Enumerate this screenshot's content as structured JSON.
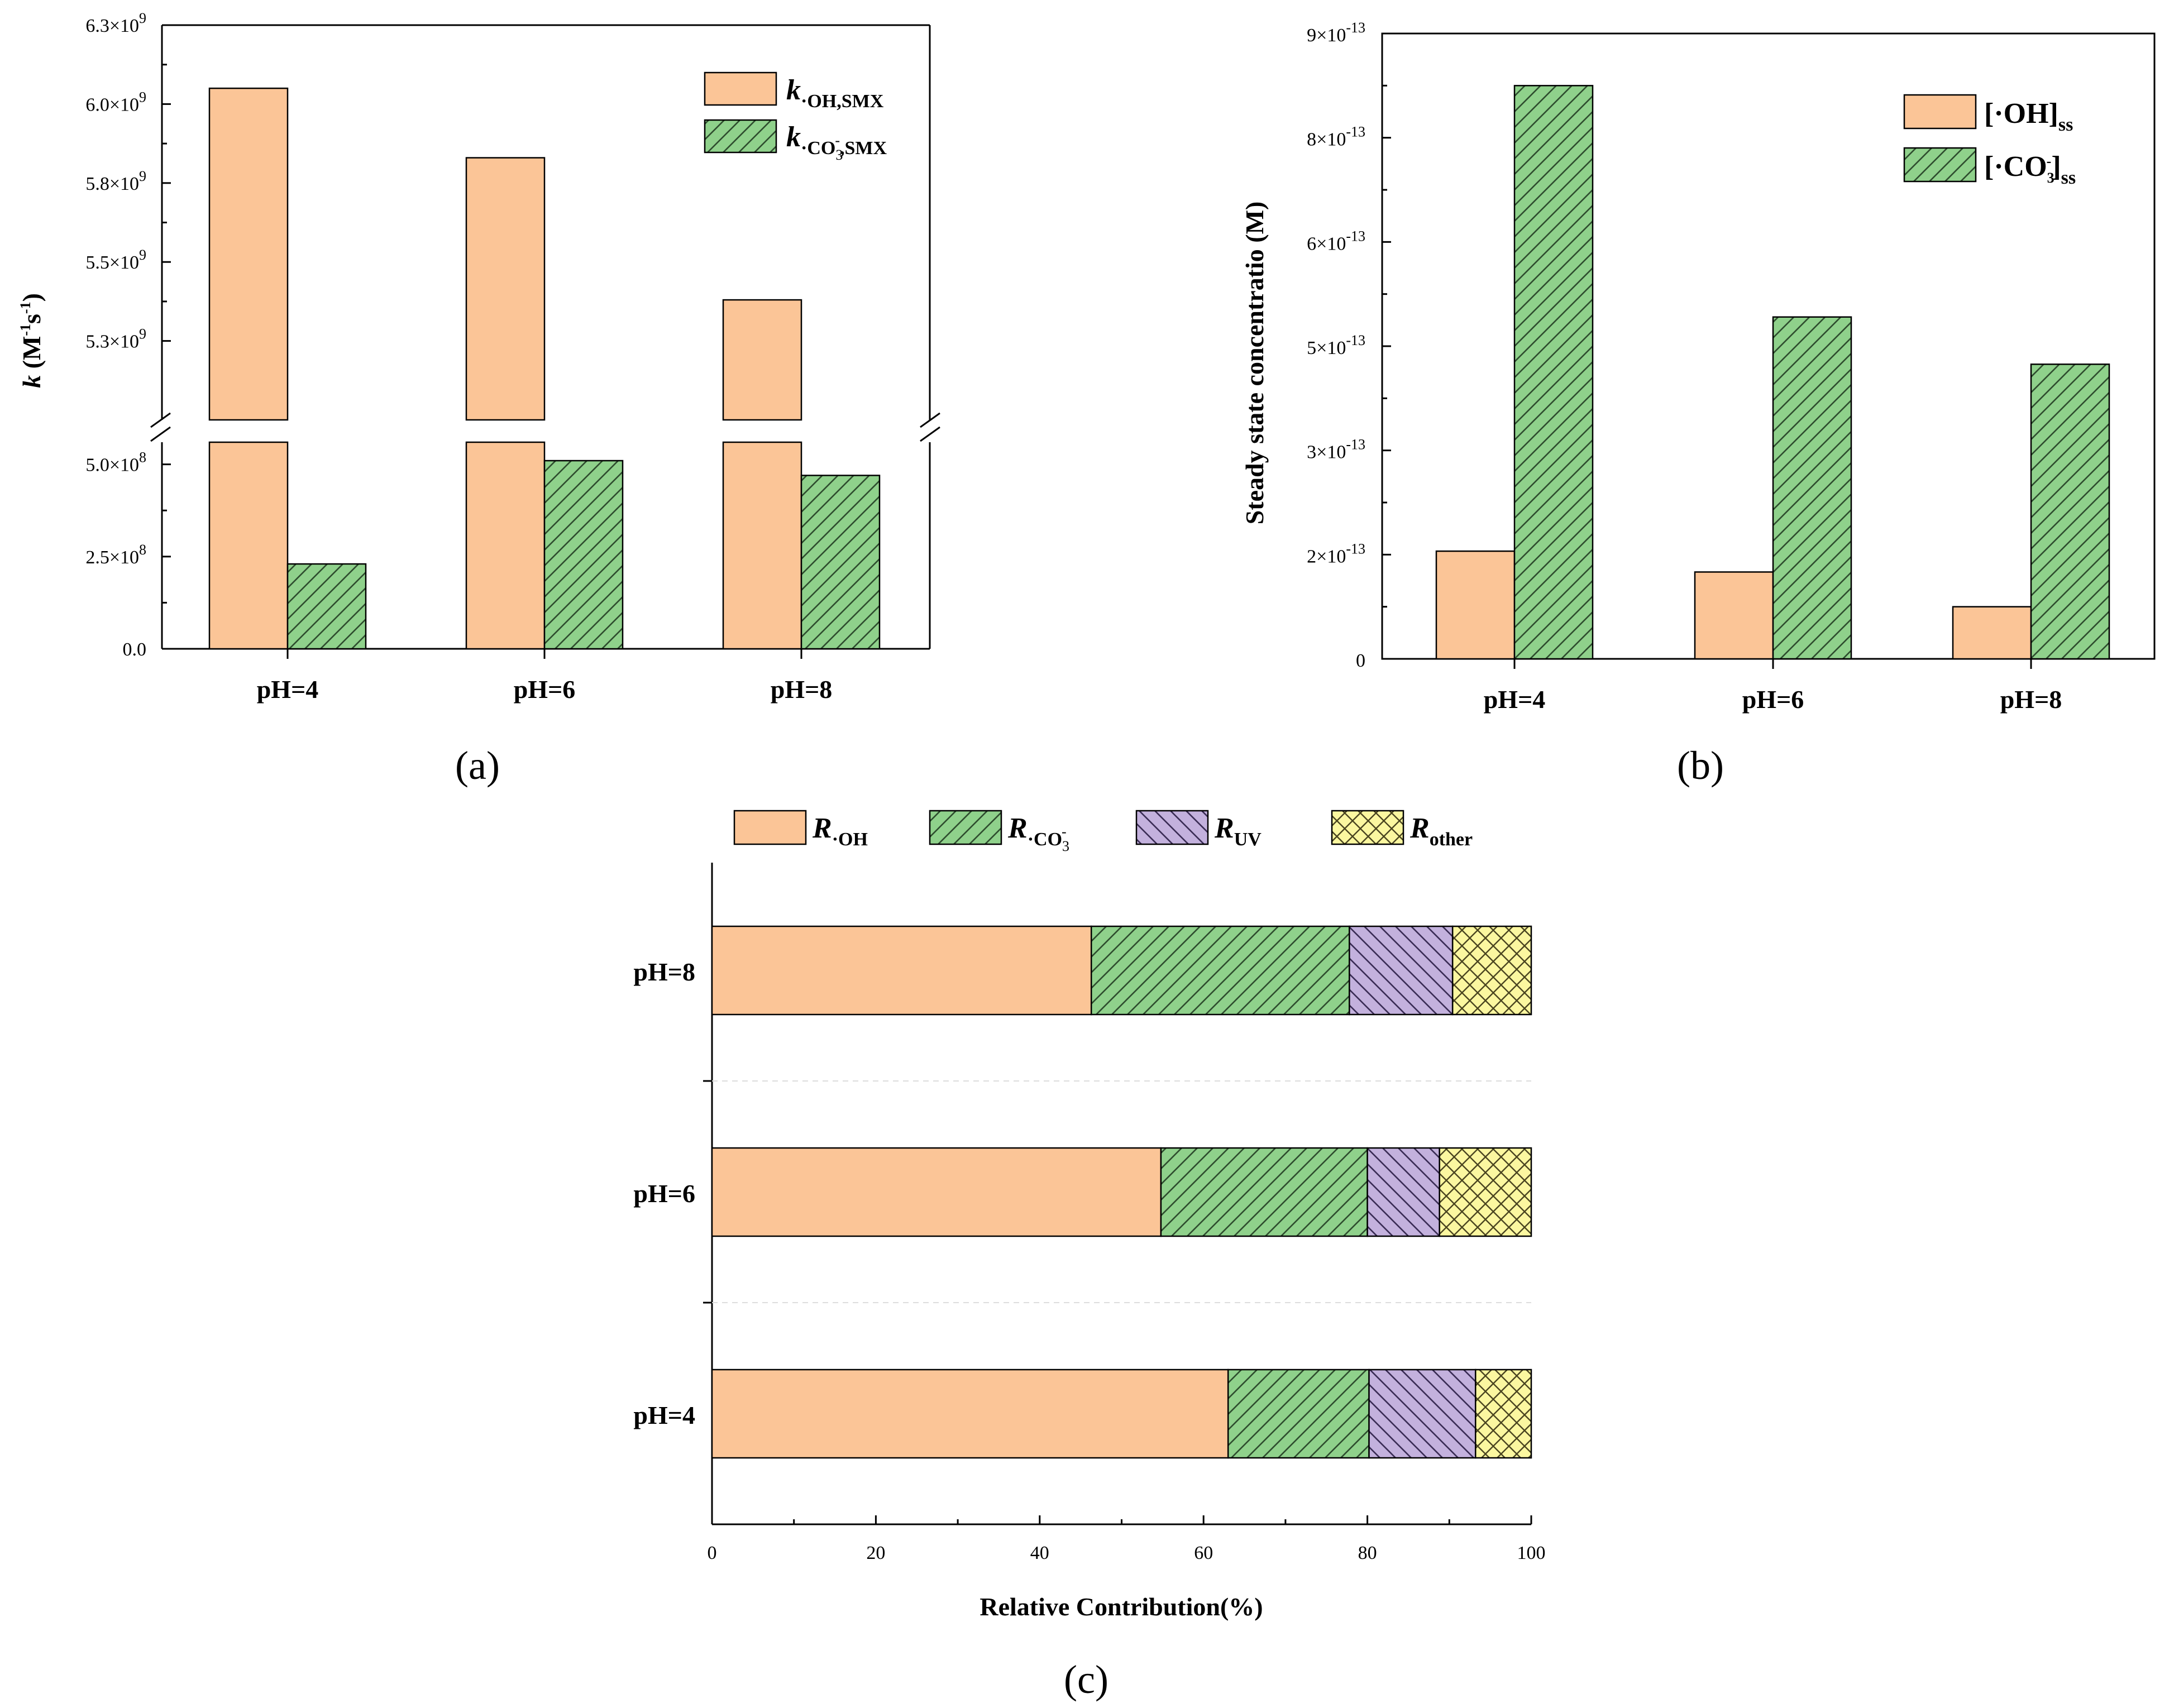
{
  "colors": {
    "oh": "#FBC597",
    "co3": "#8FD18B",
    "uv": "#C3B1DD",
    "other": "#FBF7A0",
    "hatch": "#2e4d2e",
    "axis": "#000000"
  },
  "chart_data": [
    {
      "id": "a",
      "type": "bar",
      "panel_label": "(a)",
      "categories": [
        "pH=4",
        "pH=6",
        "pH=8"
      ],
      "series": [
        {
          "name": "k·OH,SMX",
          "values": [
            6100000000,
            5880000000,
            5430000000
          ]
        },
        {
          "name": "k·CO3−,SMX",
          "values": [
            230000000,
            510000000,
            470000000
          ]
        }
      ],
      "broken_axis": {
        "lower_range": [
          0,
          560000000
        ],
        "upper_range": [
          5050000000,
          6300000000
        ]
      },
      "yticks_lower": [
        {
          "v": 0,
          "label": "0.0"
        },
        {
          "v": 250000000,
          "label": "2.5×10",
          "exp": "8"
        },
        {
          "v": 500000000,
          "label": "5.0×10",
          "exp": "8"
        }
      ],
      "yticks_upper": [
        {
          "v": 5300000000,
          "label": "5.3×10",
          "exp": "9"
        },
        {
          "v": 5550000000,
          "label": "5.5×10",
          "exp": "9"
        },
        {
          "v": 5800000000,
          "label": "5.8×10",
          "exp": "9"
        },
        {
          "v": 6050000000,
          "label": "6.0×10",
          "exp": "9"
        },
        {
          "v": 6300000000,
          "label": "6.3×10",
          "exp": "9"
        }
      ],
      "ylabel": {
        "var": "k",
        "text": " (M",
        "exp1": "-1",
        "mid": "s",
        "exp2": "-1",
        "end": ")"
      },
      "legend": [
        {
          "var": "k",
          "sub": "·OH,SMX"
        },
        {
          "var": "k",
          "sub1": "·CO",
          "sub2": "3",
          "sup": "-",
          "sub3": ",SMX"
        }
      ]
    },
    {
      "id": "b",
      "type": "bar",
      "panel_label": "(b)",
      "categories": [
        "pH=4",
        "pH=6",
        "pH=8"
      ],
      "series": [
        {
          "name": "[·OH]ss",
          "values": [
            1.55e-13,
            1.25e-13,
            7.5e-14
          ]
        },
        {
          "name": "[·CO3−]ss",
          "values": [
            8.25e-13,
            4.92e-13,
            4.24e-13
          ]
        }
      ],
      "ylim": [
        0,
        9e-13
      ],
      "yticks": [
        {
          "v": 0,
          "label": "0"
        },
        {
          "v": 1.5e-13,
          "label": "2×10",
          "exp": "-13"
        },
        {
          "v": 3e-13,
          "label": "3×10",
          "exp": "-13"
        },
        {
          "v": 4.5e-13,
          "label": "5×10",
          "exp": "-13"
        },
        {
          "v": 6e-13,
          "label": "6×10",
          "exp": "-13"
        },
        {
          "v": 7.5e-13,
          "label": "8×10",
          "exp": "-13"
        },
        {
          "v": 9e-13,
          "label": "9×10",
          "exp": "-13"
        }
      ],
      "ylabel": "Steady state concentratio (M)",
      "legend": [
        {
          "text": "[·OH]",
          "sub": "ss"
        },
        {
          "text": "[·CO",
          "sub1": "3",
          "sup": "-",
          "end": "]",
          "sub": "ss"
        }
      ]
    },
    {
      "id": "c",
      "type": "bar",
      "orientation": "horizontal-stacked",
      "panel_label": "(c)",
      "categories": [
        "pH=8",
        "pH=6",
        "pH=4"
      ],
      "series": [
        {
          "name": "R·OH",
          "values": [
            46.3,
            54.8,
            63.0
          ]
        },
        {
          "name": "R·CO3−",
          "values": [
            31.5,
            25.2,
            17.2
          ]
        },
        {
          "name": "RUV",
          "values": [
            12.6,
            8.8,
            13.0
          ]
        },
        {
          "name": "Rother",
          "values": [
            9.6,
            11.2,
            6.8
          ]
        }
      ],
      "xlim": [
        0,
        100
      ],
      "xticks": [
        "0",
        "20",
        "40",
        "60",
        "80",
        "100"
      ],
      "xlabel": "Relative Contribution(%)",
      "legend": [
        {
          "var": "R",
          "sub": "·OH"
        },
        {
          "var": "R",
          "sub1": "·CO",
          "sub2": "3",
          "sup": "-"
        },
        {
          "var": "R",
          "sub": "UV"
        },
        {
          "var": "R",
          "sub": "other"
        }
      ]
    }
  ]
}
